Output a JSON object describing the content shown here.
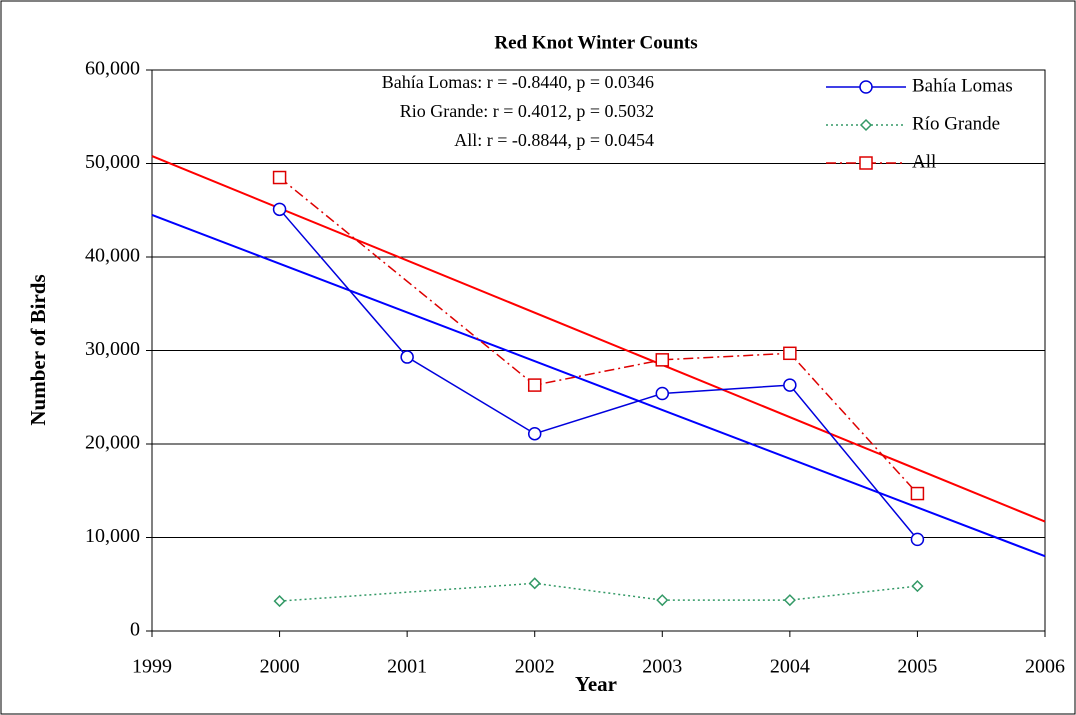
{
  "chart_data": {
    "type": "line",
    "title": "Red Knot Winter Counts",
    "x_label": "Year",
    "y_label": "Number of Birds",
    "annotations": [
      "Bahía Lomas: r = -0.8440, p = 0.0346",
      "Rio Grande: r =  0.4012, p = 0.5032",
      "All: r = -0.8844, p = 0.0454"
    ],
    "series": [
      {
        "name": "Bahía  Lomas",
        "color": "#0000dd",
        "marker": "circle",
        "dash": "none",
        "x": [
          2000,
          2001,
          2002,
          2003,
          2004,
          2005
        ],
        "values": [
          45100,
          29300,
          21100,
          25400,
          26300,
          9800
        ]
      },
      {
        "name": "Río Grande",
        "color": "#339966",
        "marker": "diamond",
        "dash": "2,3",
        "x": [
          2000,
          2002,
          2003,
          2004,
          2005
        ],
        "values": [
          3200,
          5100,
          3300,
          3300,
          4800
        ]
      },
      {
        "name": "All",
        "color": "#dd0000",
        "marker": "square",
        "dash": "10,4,2,4",
        "x": [
          2000,
          2002,
          2003,
          2004,
          2005
        ],
        "values": [
          48500,
          26300,
          29000,
          29700,
          14700
        ]
      }
    ],
    "trendlines": [
      {
        "color": "#0000ff",
        "x": [
          1999,
          2006
        ],
        "values": [
          44500,
          8000
        ]
      },
      {
        "color": "#ff0000",
        "x": [
          1999,
          2006
        ],
        "values": [
          50800,
          11700
        ]
      }
    ],
    "xlim": [
      1999,
      2006
    ],
    "xticks": [
      1999,
      2000,
      2001,
      2002,
      2003,
      2004,
      2005,
      2006
    ],
    "ylim": [
      0,
      60000
    ],
    "yticks": [
      0,
      {
        "value": 10000,
        "label": "10,000"
      },
      {
        "value": 20000,
        "label": "20,000"
      },
      {
        "value": 30000,
        "label": "30,000"
      },
      {
        "value": 40000,
        "label": "40,000"
      },
      {
        "value": 50000,
        "label": "50,000"
      },
      {
        "value": 60000,
        "label": "60,000"
      }
    ],
    "grid": true,
    "legend": "top-right"
  }
}
